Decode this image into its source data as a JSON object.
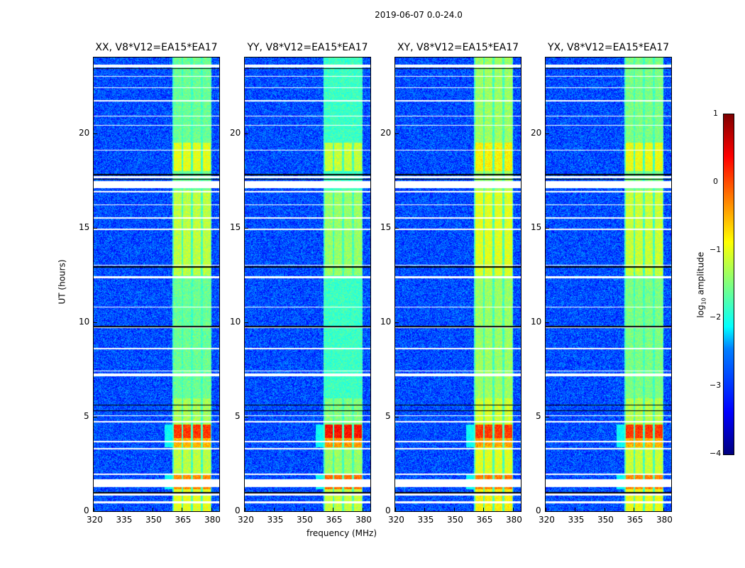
{
  "figure_title": "2019-06-07 0.0-24.0",
  "chart_data": {
    "type": "heatmap",
    "title": "2019-06-07 0.0-24.0",
    "xlabel": "frequency (MHz)",
    "ylabel": "UT (hours)",
    "xlim": [
      320,
      384
    ],
    "ylim": [
      0,
      24
    ],
    "xticks": [
      "320",
      "335",
      "350",
      "365",
      "380"
    ],
    "yticks": [
      "0",
      "5",
      "10",
      "15",
      "20"
    ],
    "panels": [
      {
        "title": "XX, V8*V12=EA15*EA17",
        "rfi_scale": 1.0
      },
      {
        "title": "YY, V8*V12=EA15*EA17",
        "rfi_scale": 1.15
      },
      {
        "title": "XY, V8*V12=EA15*EA17",
        "rfi_scale": 0.85
      },
      {
        "title": "YX, V8*V12=EA15*EA17",
        "rfi_scale": 0.95
      }
    ],
    "colorbar": {
      "label": "log10 amplitude",
      "label_main": "log",
      "label_sub": "10",
      "label_rest": " amplitude",
      "range": [
        -4,
        1
      ],
      "ticks": [
        "1",
        "0",
        "−1",
        "−2",
        "−3",
        "−4"
      ],
      "cmap": "jet"
    },
    "background_log_amplitude": -3.0,
    "rfi_channels_mhz": [
      [
        360.5,
        364.5
      ],
      [
        365.5,
        369.5
      ],
      [
        370.5,
        374.5
      ],
      [
        375.5,
        379.5
      ]
    ],
    "rfi_segments_hours_value": [
      [
        0,
        1.2,
        -1.0
      ],
      [
        1.2,
        2.0,
        -0.3
      ],
      [
        2.0,
        3.4,
        -1.2
      ],
      [
        3.4,
        3.9,
        -0.5
      ],
      [
        3.9,
        4.6,
        0.1
      ],
      [
        4.6,
        6.0,
        -1.3
      ],
      [
        6.0,
        9.3,
        -1.6
      ],
      [
        9.3,
        12.5,
        -1.6
      ],
      [
        12.5,
        17.0,
        -1.2
      ],
      [
        17.0,
        18.0,
        -1.6
      ],
      [
        18.0,
        19.5,
        -1.0
      ],
      [
        19.5,
        24,
        -1.6
      ]
    ],
    "flagged_rows_hours": [
      [
        0.45,
        0.55
      ],
      [
        0.85,
        0.95
      ],
      [
        1.3,
        1.7
      ],
      [
        1.95,
        2.02
      ],
      [
        3.28,
        3.36
      ],
      [
        3.65,
        3.72
      ],
      [
        4.7,
        4.78
      ],
      [
        5.05,
        5.1
      ],
      [
        7.15,
        7.3
      ],
      [
        7.4,
        7.45
      ],
      [
        8.6,
        8.65
      ],
      [
        9.7,
        9.75
      ],
      [
        10.8,
        10.85
      ],
      [
        12.35,
        12.45
      ],
      [
        13.0,
        13.05
      ],
      [
        14.9,
        14.95
      ],
      [
        15.5,
        15.55
      ],
      [
        16.2,
        16.25
      ],
      [
        16.9,
        16.95
      ],
      [
        17.1,
        17.5
      ],
      [
        17.65,
        17.75
      ],
      [
        19.1,
        19.15
      ],
      [
        20.4,
        20.45
      ],
      [
        20.9,
        20.95
      ],
      [
        21.7,
        21.75
      ],
      [
        22.4,
        22.45
      ],
      [
        23.0,
        23.05
      ],
      [
        23.5,
        23.65
      ]
    ],
    "black_rows_hours": [
      [
        0.95,
        1.02
      ],
      [
        5.3,
        5.35
      ],
      [
        5.6,
        5.65
      ],
      [
        9.75,
        9.82
      ],
      [
        12.9,
        12.97
      ],
      [
        17.55,
        17.6
      ],
      [
        17.8,
        17.85
      ],
      [
        23.4,
        23.45
      ]
    ]
  }
}
